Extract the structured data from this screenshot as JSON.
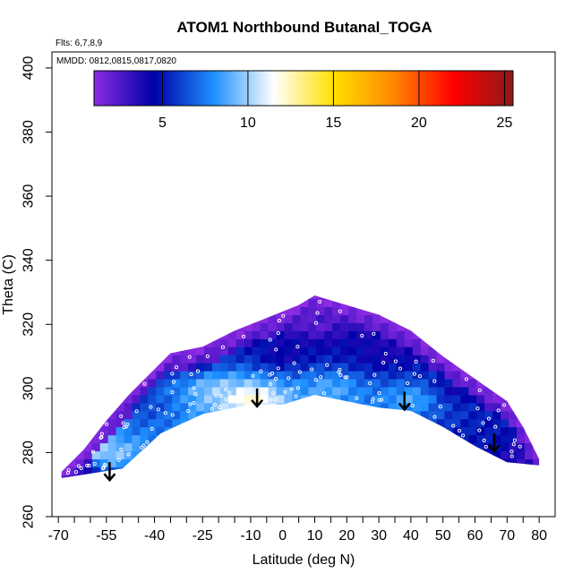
{
  "chart_data": {
    "type": "heatmap",
    "title": "ATOM1 Northbound Butanal_TOGA",
    "flights_label": "Flts: 6,7,8,9",
    "dates_label": "MMDD: 0812,0815,0817,0820",
    "xlabel": "Latitude (deg N)",
    "ylabel": "Theta (C)",
    "xlim": [
      -72,
      85
    ],
    "ylim": [
      260,
      405
    ],
    "x_ticks": [
      -70,
      -55,
      -40,
      -25,
      -10,
      0,
      10,
      20,
      30,
      40,
      50,
      60,
      70,
      80
    ],
    "x_tick_labels": [
      "-70",
      "-55",
      "-40",
      "-25",
      "-10",
      "0",
      "10",
      "20",
      "30",
      "40",
      "50",
      "60",
      "70",
      "80"
    ],
    "x_minor_ticks": [
      -65,
      -60,
      -50,
      -45,
      -35,
      -30,
      -20,
      -15,
      -5,
      5,
      15,
      25,
      35,
      45,
      55,
      65,
      75
    ],
    "y_ticks": [
      260,
      280,
      300,
      320,
      340,
      360,
      380,
      400
    ],
    "y_tick_labels": [
      "260",
      "280",
      "300",
      "320",
      "340",
      "360",
      "380",
      "400"
    ],
    "colorbar": {
      "range": [
        1,
        25.5
      ],
      "ticks": [
        5,
        10,
        15,
        20,
        25
      ],
      "tick_labels": [
        "5",
        "10",
        "15",
        "20",
        "25"
      ],
      "stops": [
        "#8c2be2",
        "#0000a8",
        "#1e90ff",
        "#ffffff",
        "#ffe000",
        "#ff8800",
        "#ff0000",
        "#8b1a1a"
      ]
    },
    "domain_lower_theta": [
      [
        -69,
        272
      ],
      [
        -50,
        275
      ],
      [
        -38,
        286
      ],
      [
        -25,
        292
      ],
      [
        -10,
        295
      ],
      [
        0,
        295
      ],
      [
        10,
        298
      ],
      [
        20,
        296
      ],
      [
        30,
        294
      ],
      [
        40,
        293
      ],
      [
        50,
        288
      ],
      [
        60,
        282
      ],
      [
        70,
        277
      ],
      [
        80,
        276
      ]
    ],
    "domain_upper_theta": [
      [
        -69,
        274
      ],
      [
        -62,
        281
      ],
      [
        -55,
        290
      ],
      [
        -48,
        298
      ],
      [
        -40,
        306
      ],
      [
        -35,
        311
      ],
      [
        -25,
        313
      ],
      [
        -15,
        318
      ],
      [
        -5,
        322
      ],
      [
        5,
        326
      ],
      [
        10,
        329
      ],
      [
        20,
        326
      ],
      [
        30,
        323
      ],
      [
        40,
        318
      ],
      [
        50,
        310
      ],
      [
        60,
        303
      ],
      [
        70,
        296
      ],
      [
        75,
        288
      ],
      [
        80,
        278
      ]
    ],
    "field_anchors": [
      {
        "lat": -68,
        "theta": 273,
        "value": 2
      },
      {
        "lat": -55,
        "theta": 280,
        "value": 10
      },
      {
        "lat": -45,
        "theta": 295,
        "value": 6
      },
      {
        "lat": -20,
        "theta": 300,
        "value": 10
      },
      {
        "lat": -10,
        "theta": 297,
        "value": 13
      },
      {
        "lat": 0,
        "theta": 310,
        "value": 4
      },
      {
        "lat": 10,
        "theta": 320,
        "value": 2
      },
      {
        "lat": 15,
        "theta": 300,
        "value": 9
      },
      {
        "lat": 30,
        "theta": 310,
        "value": 4
      },
      {
        "lat": 40,
        "theta": 297,
        "value": 9
      },
      {
        "lat": 55,
        "theta": 300,
        "value": 4
      },
      {
        "lat": 65,
        "theta": 285,
        "value": 5
      },
      {
        "lat": 78,
        "theta": 280,
        "value": 3
      },
      {
        "lat": -30,
        "theta": 310,
        "value": 3
      },
      {
        "lat": 40,
        "theta": 315,
        "value": 3
      }
    ],
    "arrows": [
      {
        "lat": -54,
        "theta": 277
      },
      {
        "lat": -8,
        "theta": 300
      },
      {
        "lat": 38,
        "theta": 299
      },
      {
        "lat": 66,
        "theta": 286
      }
    ]
  }
}
